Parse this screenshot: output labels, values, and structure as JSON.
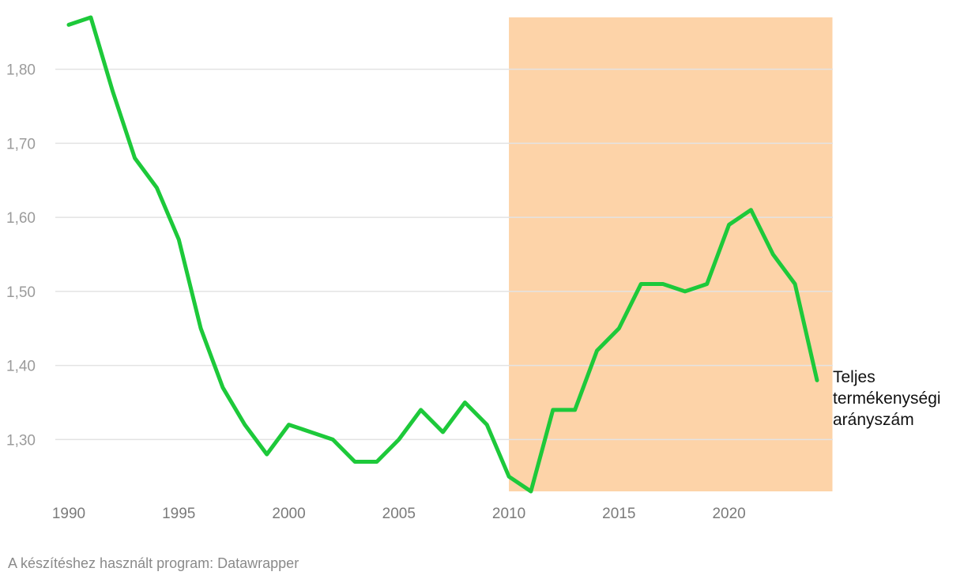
{
  "chart_data": {
    "type": "line",
    "title": "",
    "xlabel": "",
    "ylabel": "",
    "x": [
      1990,
      1991,
      1992,
      1993,
      1994,
      1995,
      1996,
      1997,
      1998,
      1999,
      2000,
      2001,
      2002,
      2003,
      2004,
      2005,
      2006,
      2007,
      2008,
      2009,
      2010,
      2011,
      2012,
      2013,
      2014,
      2015,
      2016,
      2017,
      2018,
      2019,
      2020,
      2021,
      2022,
      2023,
      2024
    ],
    "series": [
      {
        "name": "Teljes termékenységi arányszám",
        "label_lines": [
          "Teljes",
          "termékenységi",
          "arányszám"
        ],
        "color": "#1dc93a",
        "values": [
          1.86,
          1.87,
          1.77,
          1.68,
          1.64,
          1.57,
          1.45,
          1.37,
          1.32,
          1.28,
          1.32,
          1.31,
          1.3,
          1.27,
          1.27,
          1.3,
          1.34,
          1.31,
          1.35,
          1.32,
          1.25,
          1.23,
          1.34,
          1.34,
          1.42,
          1.45,
          1.51,
          1.51,
          1.5,
          1.51,
          1.59,
          1.61,
          1.55,
          1.51,
          1.38
        ]
      }
    ],
    "xlim": [
      1990,
      2024
    ],
    "ylim": [
      1.23,
      1.87
    ],
    "x_ticks": [
      1990,
      1995,
      2000,
      2005,
      2010,
      2015,
      2020
    ],
    "x_tick_labels": [
      "1990",
      "1995",
      "2000",
      "2005",
      "2010",
      "2015",
      "2020"
    ],
    "y_ticks": [
      1.3,
      1.4,
      1.5,
      1.6,
      1.7,
      1.8
    ],
    "y_tick_labels": [
      "1,30",
      "1,40",
      "1,50",
      "1,60",
      "1,70",
      "1,80"
    ],
    "grid": true,
    "highlight_range": {
      "x_from": 2010,
      "x_to": 2024.7,
      "color": "#fdd3a8"
    }
  },
  "footer": {
    "credit": "A készítéshez használt program: Datawrapper"
  }
}
